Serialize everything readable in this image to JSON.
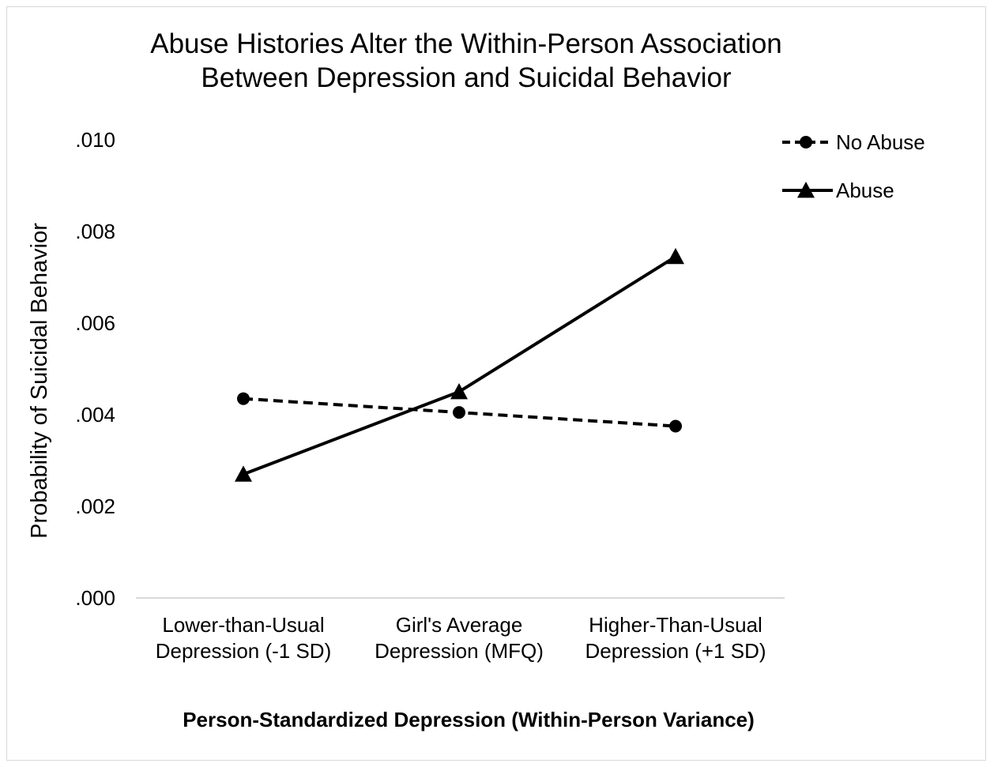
{
  "chart_data": {
    "type": "line",
    "title": [
      "Abuse Histories Alter the Within-Person Association",
      "Between Depression and Suicidal Behavior"
    ],
    "xlabel": "Person-Standardized Depression (Within-Person Variance)",
    "ylabel": "Probability of Suicidal Behavior",
    "categories": [
      [
        "Lower-than-Usual",
        "Depression (-1 SD)"
      ],
      [
        "Girl's Average",
        "Depression (MFQ)"
      ],
      [
        "Higher-Than-Usual",
        "Depression (+1 SD)"
      ]
    ],
    "yticks": [
      ".000",
      ".002",
      ".004",
      ".006",
      ".008",
      ".010"
    ],
    "ylim": [
      0,
      0.01
    ],
    "grid": false,
    "legend_position": "top-right",
    "series": [
      {
        "name": "No Abuse",
        "values": [
          0.00435,
          0.00405,
          0.00375
        ],
        "line_style": "dashed",
        "marker": "circle",
        "color": "#000000"
      },
      {
        "name": "Abuse",
        "values": [
          0.0027,
          0.0045,
          0.00745
        ],
        "line_style": "solid",
        "marker": "triangle",
        "color": "#000000"
      }
    ]
  }
}
